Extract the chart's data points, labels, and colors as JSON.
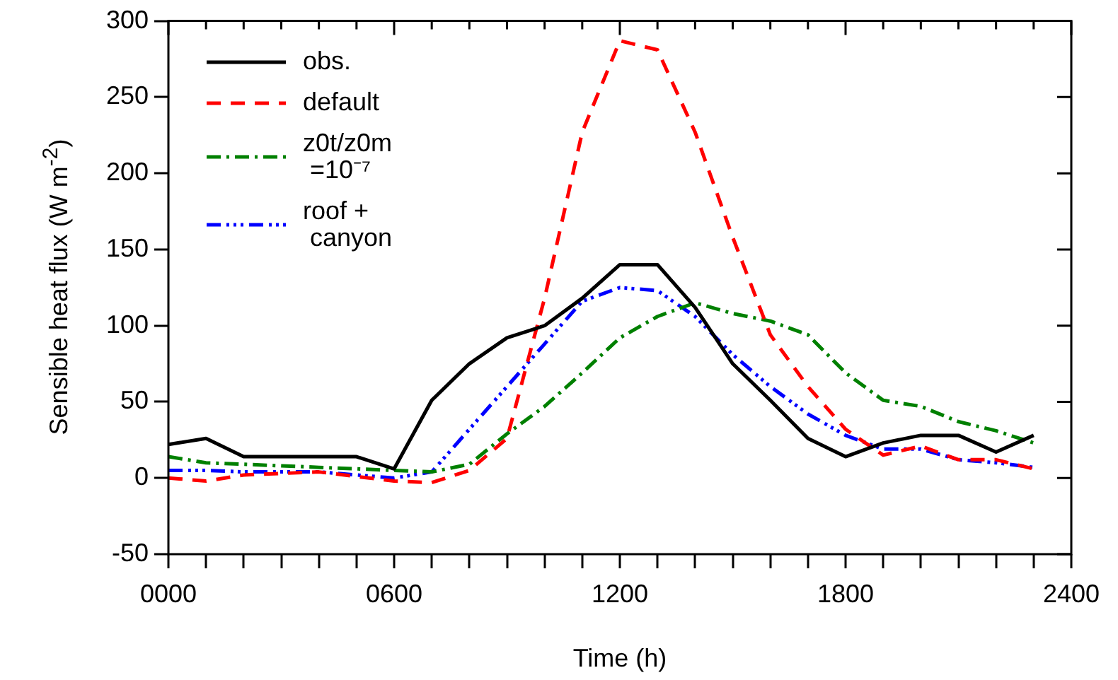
{
  "chart_data": {
    "type": "line",
    "xlabel": "Time (h)",
    "ylabel": "Sensible heat flux (W m$^{-2}$)",
    "x": [
      0,
      100,
      200,
      300,
      400,
      500,
      600,
      700,
      800,
      900,
      1000,
      1100,
      1200,
      1300,
      1400,
      1500,
      1600,
      1700,
      1800,
      1900,
      2000,
      2100,
      2200,
      2300
    ],
    "xlim": [
      0,
      2400
    ],
    "xticks": [
      {
        "value": 0,
        "label": "0000"
      },
      {
        "value": 100,
        "label": null
      },
      {
        "value": 200,
        "label": null
      },
      {
        "value": 300,
        "label": null
      },
      {
        "value": 400,
        "label": null
      },
      {
        "value": 500,
        "label": null
      },
      {
        "value": 600,
        "label": "0600"
      },
      {
        "value": 700,
        "label": null
      },
      {
        "value": 800,
        "label": null
      },
      {
        "value": 900,
        "label": null
      },
      {
        "value": 1000,
        "label": null
      },
      {
        "value": 1100,
        "label": null
      },
      1200,
      {
        "value": 1300,
        "label": null
      },
      {
        "value": 1400,
        "label": null
      },
      {
        "value": 1500,
        "label": null
      },
      {
        "value": 1600,
        "label": null
      },
      {
        "value": 1700,
        "label": null
      },
      1800,
      {
        "value": 1900,
        "label": null
      },
      {
        "value": 2000,
        "label": null
      },
      {
        "value": 2100,
        "label": null
      },
      {
        "value": 2200,
        "label": null
      },
      {
        "value": 2300,
        "label": null
      },
      2400
    ],
    "ylim": [
      -50,
      300
    ],
    "yticks": [
      -50,
      0,
      50,
      100,
      150,
      200,
      250,
      300
    ],
    "grid": false,
    "legend": "top left",
    "marker": "none",
    "series": [
      {
        "name": "obs.",
        "color": "#000000",
        "line_style": "solid",
        "values": [
          22,
          26,
          14,
          14,
          14,
          14,
          6,
          51,
          75,
          92,
          100,
          118,
          140,
          140,
          112,
          75,
          51,
          26,
          14,
          23,
          28,
          28,
          17,
          28
        ]
      },
      {
        "name": "default",
        "color": "#ff0000",
        "line_style": "dashed",
        "values": [
          0,
          -2,
          2,
          3,
          4,
          1,
          -2,
          -3,
          5,
          26,
          118,
          227,
          287,
          281,
          227,
          158,
          94,
          60,
          32,
          15,
          21,
          12,
          12,
          6
        ]
      },
      {
        "name": "z0t/z0m =10⁻⁷",
        "color": "#008000",
        "line_style": "dashdot",
        "values": [
          14,
          10,
          9,
          8,
          7,
          6,
          5,
          4,
          9,
          29,
          47,
          69,
          92,
          106,
          115,
          108,
          103,
          94,
          69,
          51,
          47,
          37,
          31,
          23
        ]
      },
      {
        "name": "roof + canyon",
        "color": "#0000ff",
        "line_style": "dashdotdot",
        "values": [
          5,
          5,
          4,
          4,
          4,
          2,
          0,
          4,
          32,
          60,
          88,
          116,
          125,
          123,
          106,
          81,
          60,
          42,
          28,
          19,
          19,
          12,
          10,
          7
        ]
      }
    ]
  }
}
